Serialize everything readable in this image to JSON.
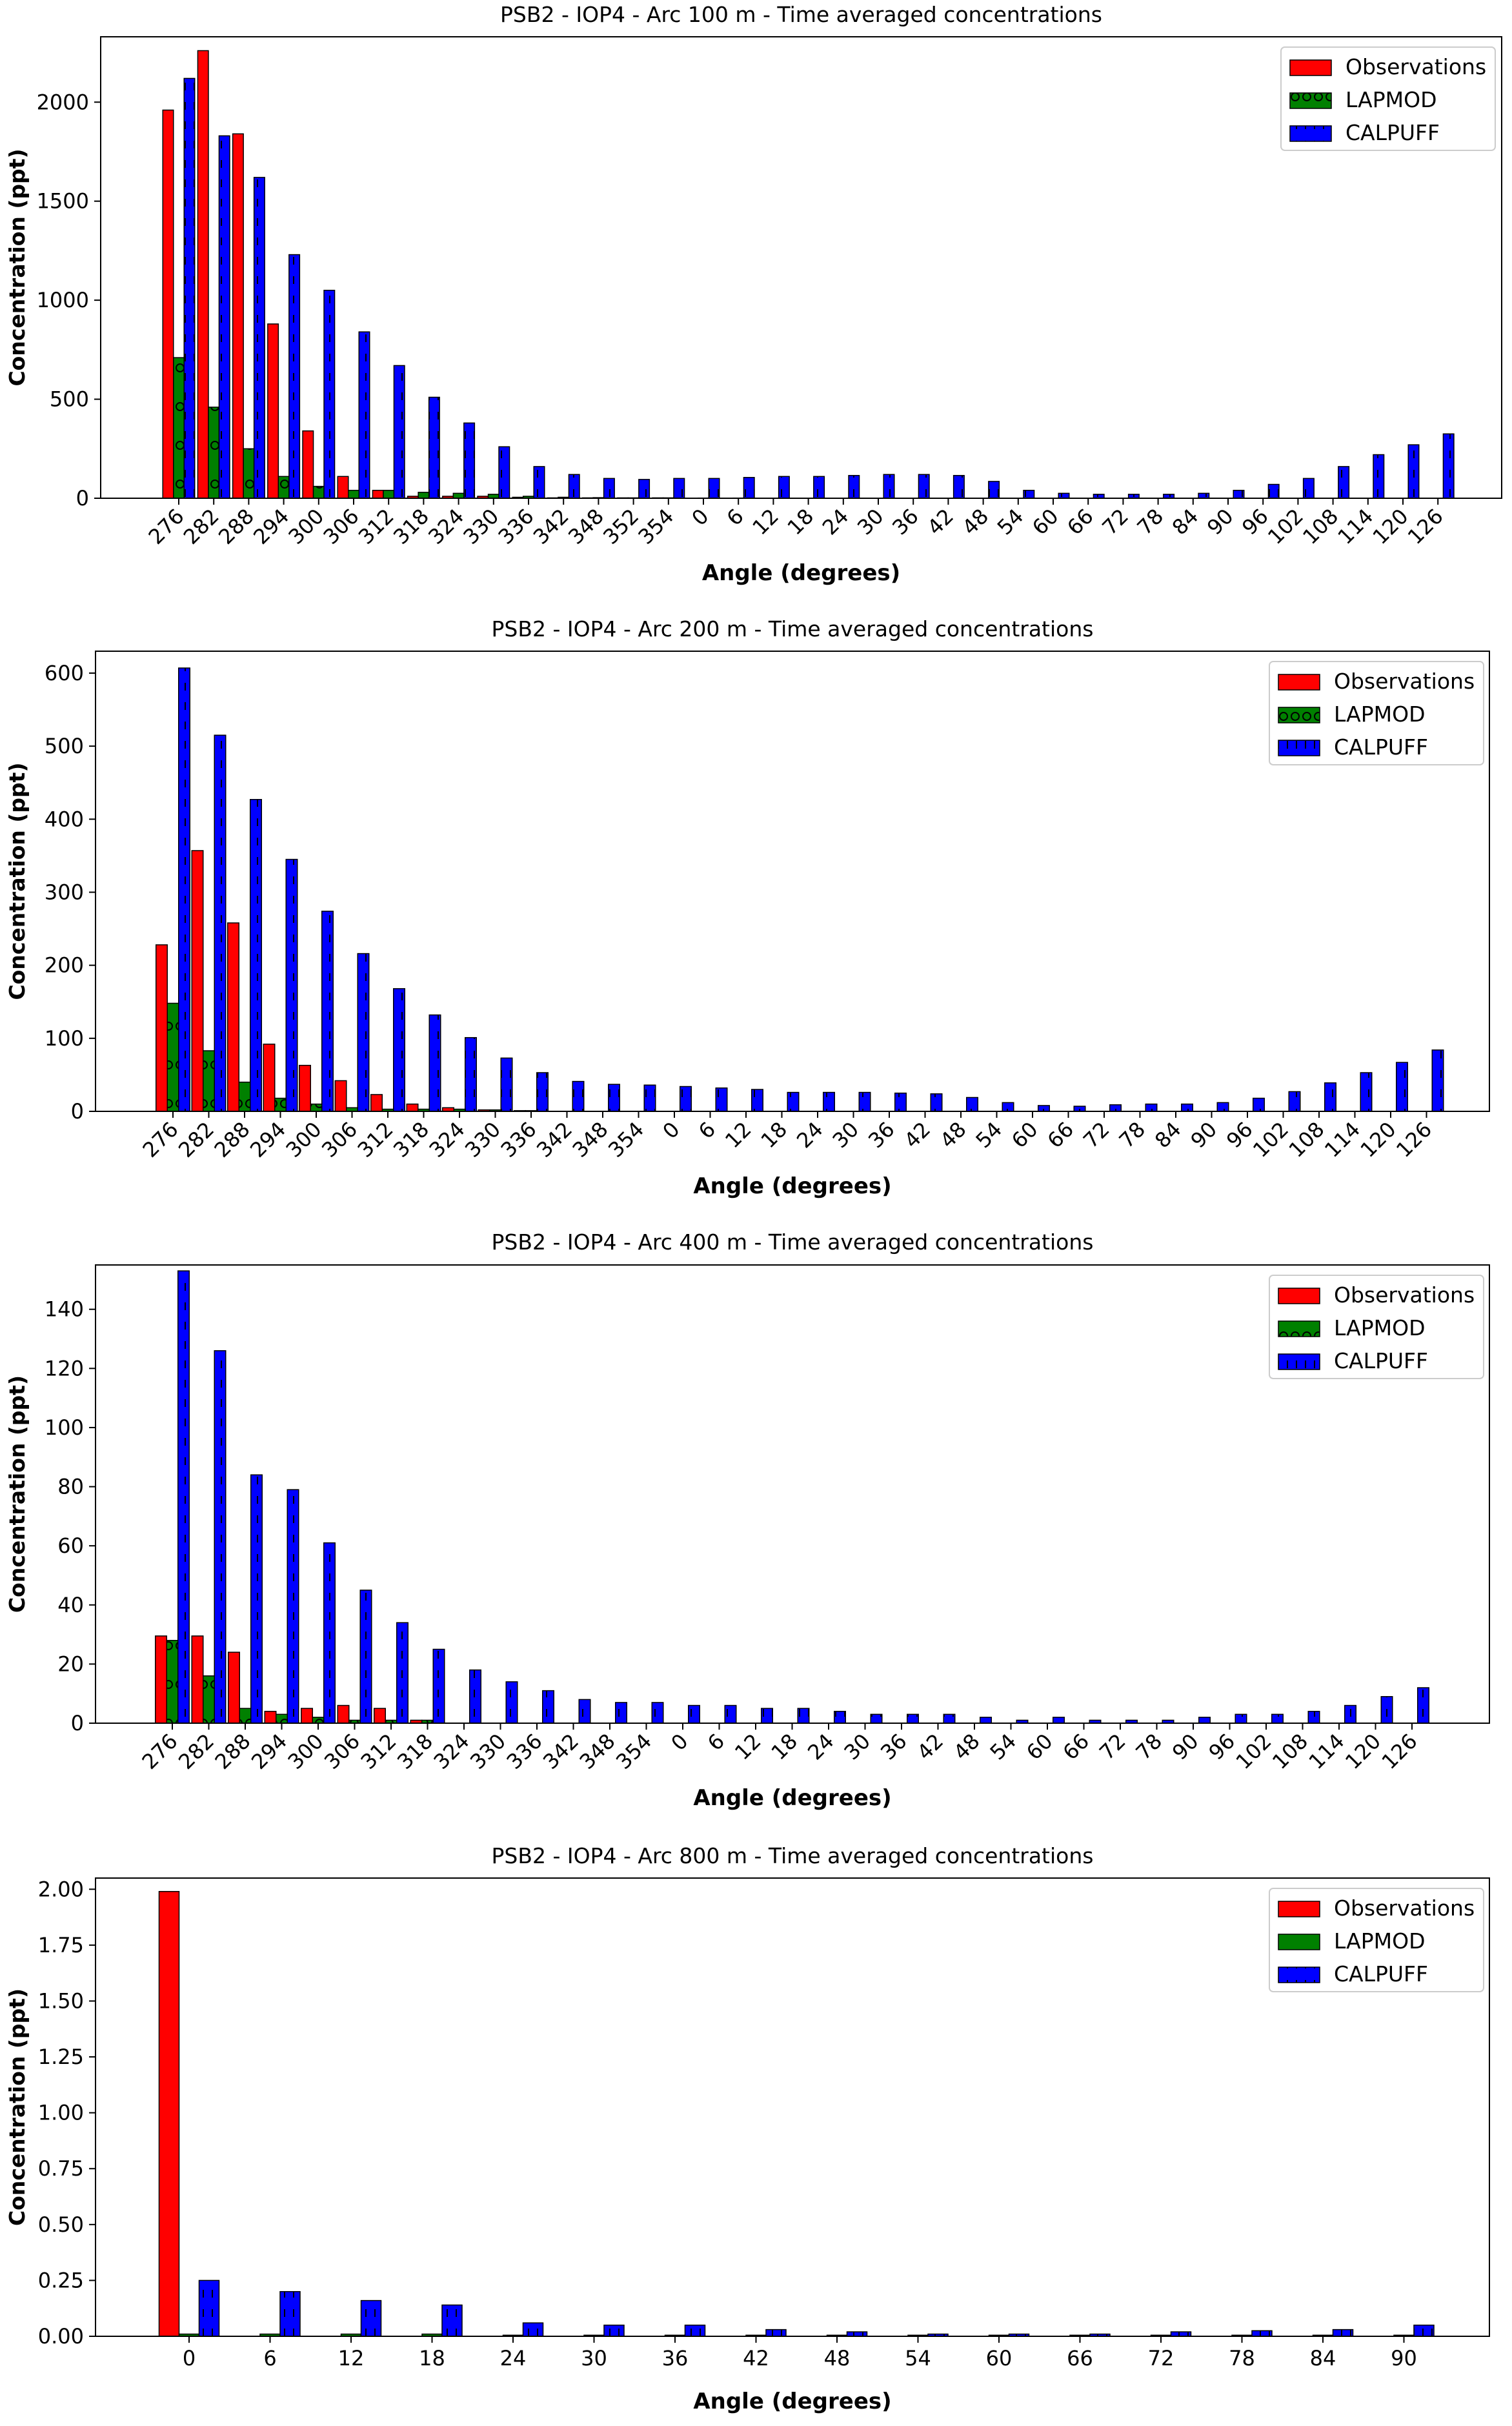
{
  "colors": {
    "observations": "#ff0000",
    "lapmod": "#008000",
    "calpuff": "#0000ff"
  },
  "legend": [
    "Observations",
    "LAPMOD",
    "CALPUFF"
  ],
  "chart_data": [
    {
      "type": "bar",
      "title": "PSB2 - IOP4 - Arc 100 m - Time averaged concentrations",
      "xlabel": "Angle (degrees)",
      "ylabel": "Concentration (ppt)",
      "ylim": [
        0,
        2330
      ],
      "yticks": [
        "0",
        "500",
        "1000",
        "1500",
        "2000"
      ],
      "legend_position": "top-right",
      "categories": [
        "276",
        "282",
        "288",
        "294",
        "300",
        "306",
        "312",
        "318",
        "324",
        "330",
        "336",
        "342",
        "348",
        "352",
        "354",
        "0",
        "6",
        "12",
        "18",
        "24",
        "30",
        "36",
        "42",
        "48",
        "54",
        "60",
        "66",
        "72",
        "78",
        "84",
        "90",
        "96",
        "102",
        "108",
        "114",
        "120",
        "126"
      ],
      "series": [
        {
          "name": "Observations",
          "values": [
            1960,
            2260,
            1840,
            880,
            340,
            110,
            40,
            10,
            10,
            10,
            5,
            2,
            2,
            2,
            2,
            0,
            0,
            0,
            0,
            0,
            0,
            0,
            0,
            0,
            0,
            0,
            0,
            0,
            0,
            0,
            0,
            0,
            0,
            0,
            0,
            0,
            0
          ]
        },
        {
          "name": "LAPMOD",
          "values": [
            710,
            460,
            250,
            110,
            60,
            40,
            40,
            30,
            25,
            20,
            10,
            5,
            3,
            2,
            2,
            1,
            1,
            0,
            0,
            0,
            0,
            0,
            0,
            0,
            0,
            0,
            0,
            0,
            0,
            0,
            0,
            0,
            0,
            0,
            0,
            0,
            0
          ]
        },
        {
          "name": "CALPUFF",
          "values": [
            2120,
            1830,
            1620,
            1230,
            1050,
            840,
            670,
            510,
            380,
            260,
            160,
            120,
            100,
            95,
            100,
            100,
            105,
            110,
            110,
            115,
            120,
            120,
            115,
            85,
            40,
            25,
            20,
            20,
            20,
            25,
            40,
            70,
            100,
            160,
            220,
            270,
            325
          ]
        }
      ]
    },
    {
      "type": "bar",
      "title": "PSB2 - IOP4 - Arc 200 m - Time averaged concentrations",
      "xlabel": "Angle (degrees)",
      "ylabel": "Concentration (ppt)",
      "ylim": [
        0,
        630
      ],
      "yticks": [
        "0",
        "100",
        "200",
        "300",
        "400",
        "500",
        "600"
      ],
      "legend_position": "top-right",
      "categories": [
        "276",
        "282",
        "288",
        "294",
        "300",
        "306",
        "312",
        "318",
        "324",
        "330",
        "336",
        "342",
        "348",
        "354",
        "0",
        "6",
        "12",
        "18",
        "24",
        "30",
        "36",
        "42",
        "48",
        "54",
        "60",
        "66",
        "72",
        "78",
        "84",
        "90",
        "96",
        "102",
        "108",
        "114",
        "120",
        "126"
      ],
      "series": [
        {
          "name": "Observations",
          "values": [
            228,
            357,
            258,
            92,
            63,
            42,
            23,
            10,
            5,
            2,
            1,
            0,
            0,
            0,
            0,
            0,
            0,
            0,
            0,
            0,
            0,
            0,
            0,
            0,
            0,
            0,
            0,
            0,
            0,
            0,
            0,
            0,
            0,
            0,
            0,
            0
          ]
        },
        {
          "name": "LAPMOD",
          "values": [
            148,
            83,
            40,
            18,
            10,
            5,
            3,
            3,
            3,
            2,
            1,
            0,
            0,
            0,
            0,
            0,
            0,
            0,
            0,
            0,
            0,
            0,
            0,
            0,
            0,
            0,
            0,
            0,
            0,
            0,
            0,
            0,
            0,
            0,
            0,
            0
          ]
        },
        {
          "name": "CALPUFF",
          "values": [
            607,
            515,
            427,
            345,
            274,
            216,
            168,
            132,
            101,
            73,
            53,
            41,
            37,
            36,
            34,
            32,
            30,
            26,
            26,
            26,
            25,
            24,
            19,
            12,
            8,
            7,
            9,
            10,
            10,
            12,
            18,
            27,
            39,
            53,
            67,
            84
          ]
        }
      ]
    },
    {
      "type": "bar",
      "title": "PSB2 - IOP4 - Arc 400 m - Time averaged concentrations",
      "xlabel": "Angle (degrees)",
      "ylabel": "Concentration (ppt)",
      "ylim": [
        0,
        155
      ],
      "yticks": [
        "0",
        "20",
        "40",
        "60",
        "80",
        "100",
        "120",
        "140"
      ],
      "legend_position": "top-right",
      "categories": [
        "276",
        "282",
        "288",
        "294",
        "300",
        "306",
        "312",
        "318",
        "324",
        "330",
        "336",
        "342",
        "348",
        "354",
        "0",
        "6",
        "12",
        "18",
        "24",
        "30",
        "36",
        "42",
        "48",
        "54",
        "60",
        "66",
        "72",
        "78",
        "90",
        "96",
        "102",
        "108",
        "114",
        "120",
        "126"
      ],
      "series": [
        {
          "name": "Observations",
          "values": [
            29.5,
            29.5,
            24,
            4,
            5,
            6,
            5,
            1,
            0,
            0,
            0,
            0,
            0,
            0,
            0,
            0,
            0,
            0,
            0,
            0,
            0,
            0,
            0,
            0,
            0,
            0,
            0,
            0,
            0,
            0,
            0,
            0,
            0,
            0,
            0
          ]
        },
        {
          "name": "LAPMOD",
          "values": [
            28,
            16,
            5,
            3,
            2,
            1,
            1,
            1,
            0,
            0,
            0,
            0,
            0,
            0,
            0,
            0,
            0,
            0,
            0,
            0,
            0,
            0,
            0,
            0,
            0,
            0,
            0,
            0,
            0,
            0,
            0,
            0,
            0,
            0,
            0
          ]
        },
        {
          "name": "CALPUFF",
          "values": [
            153,
            126,
            84,
            79,
            61,
            45,
            34,
            25,
            18,
            14,
            11,
            8,
            7,
            7,
            6,
            6,
            5,
            5,
            4,
            3,
            3,
            3,
            2,
            1,
            2,
            1,
            1,
            1,
            2,
            3,
            3,
            4,
            6,
            9,
            12
          ]
        }
      ]
    },
    {
      "type": "bar",
      "title": "PSB2 - IOP4 - Arc 800 m - Time averaged concentrations",
      "xlabel": "Angle (degrees)",
      "ylabel": "Concentration (ppt)",
      "ylim": [
        0,
        2.05
      ],
      "yticks": [
        "0.00",
        "0.25",
        "0.50",
        "0.75",
        "1.00",
        "1.25",
        "1.50",
        "1.75",
        "2.00"
      ],
      "legend_position": "top-right",
      "categories": [
        "0",
        "6",
        "12",
        "18",
        "24",
        "30",
        "36",
        "42",
        "48",
        "54",
        "60",
        "66",
        "72",
        "78",
        "84",
        "90"
      ],
      "series": [
        {
          "name": "Observations",
          "values": [
            1.99,
            0,
            0,
            0,
            0,
            0,
            0,
            0,
            0,
            0,
            0,
            0,
            0,
            0,
            0,
            0
          ]
        },
        {
          "name": "LAPMOD",
          "values": [
            0.01,
            0.01,
            0.01,
            0.01,
            0.005,
            0.005,
            0.005,
            0.005,
            0.005,
            0.005,
            0.005,
            0.005,
            0.005,
            0.005,
            0.005,
            0.005
          ]
        },
        {
          "name": "CALPUFF",
          "values": [
            0.25,
            0.2,
            0.16,
            0.14,
            0.06,
            0.05,
            0.05,
            0.03,
            0.02,
            0.01,
            0.01,
            0.01,
            0.02,
            0.025,
            0.03,
            0.05
          ]
        }
      ]
    }
  ]
}
